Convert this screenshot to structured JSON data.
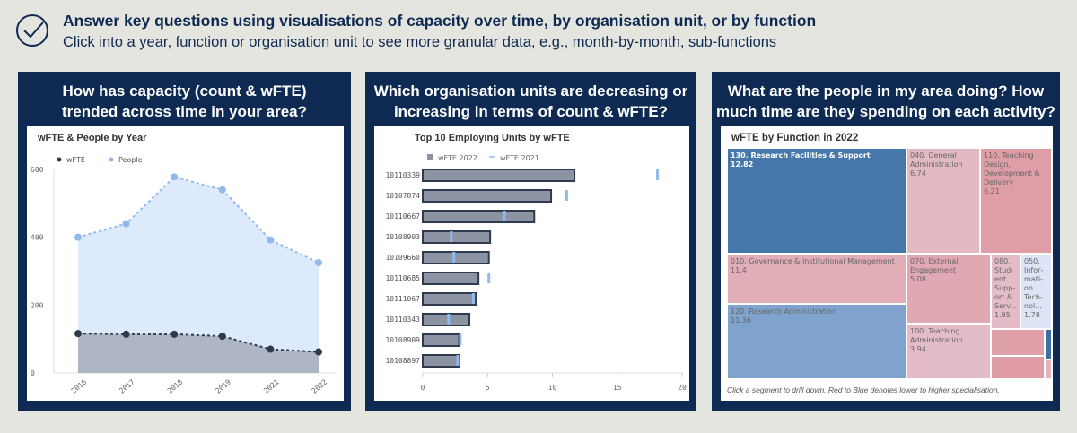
{
  "header": {
    "title": "Answer key questions using visualisations of capacity over time, by organisation unit, or by function",
    "subtitle": "Click into a year, function or organisation unit to see more granular data, e.g., month-by-month, sub-functions",
    "icon": "check-circle-icon"
  },
  "panels": [
    {
      "title_line1": "How has capacity (count & wFTE)",
      "title_line2": "trended across time in your area?"
    },
    {
      "title_line1": "Which organisation units are decreasing or",
      "title_line2": "increasing in terms of count & wFTE?"
    },
    {
      "title_line1": "What are the people in my area doing? How",
      "title_line2": "much time are they spending on each activity?"
    }
  ],
  "colors": {
    "navy": "#0e2a52",
    "people": "#8fbaf0",
    "wfte": "#2f3a4d",
    "bar": "#8c93a3"
  },
  "chart_data": [
    {
      "type": "area",
      "title": "wFTE & People by Year",
      "legend": "top-left",
      "categories": [
        "2016",
        "2017",
        "2018",
        "2019",
        "2021",
        "2022"
      ],
      "ylim": [
        0,
        600
      ],
      "yticks": [
        0,
        200,
        400,
        600
      ],
      "series": [
        {
          "name": "wFTE",
          "values": [
            116,
            114,
            114,
            108,
            70,
            62
          ]
        },
        {
          "name": "People",
          "values": [
            400,
            440,
            578,
            540,
            392,
            325
          ]
        }
      ]
    },
    {
      "type": "bar",
      "title": "Top 10 Employing Units by wFTE",
      "legend": "top-left",
      "categories": [
        "10110339",
        "10107874",
        "10110667",
        "10108903",
        "10109660",
        "10110685",
        "10111067",
        "10110343",
        "10108909",
        "10108897"
      ],
      "xlim": [
        0,
        20
      ],
      "xticks": [
        0,
        5,
        10,
        15,
        20
      ],
      "series": [
        {
          "name": "wFTE 2022",
          "values": [
            11.7,
            9.9,
            8.6,
            5.2,
            5.1,
            4.3,
            4.1,
            3.6,
            2.8,
            2.8
          ]
        },
        {
          "name": "wFTE 2021",
          "values": [
            18.1,
            11.1,
            6.3,
            2.2,
            2.4,
            5.1,
            3.9,
            2.0,
            2.9,
            2.7
          ]
        }
      ]
    },
    {
      "type": "treemap",
      "title": "wFTE by Function in 2022",
      "note": "Click a segment to drill down. Red to Blue denotes lower to higher specialisation.",
      "items": [
        {
          "label": "130. Research Facilities & Support",
          "value": "12.82"
        },
        {
          "label": "010. Governance & Institutional Management",
          "value": "11.4"
        },
        {
          "label": "120. Research Administration",
          "value": "11.36"
        },
        {
          "label": "040. General Administration",
          "value": "6.74"
        },
        {
          "label": "110. Teaching Design, Development & Delivery",
          "value": "6.21"
        },
        {
          "label": "070. External Engagement",
          "value": "5.08"
        },
        {
          "label": "100. Teaching Administration",
          "value": "3.94"
        },
        {
          "label": "080. Stud­ent Supp­ort & Serv...",
          "value": "1.95"
        },
        {
          "label": "050. Infor­mati­on Tech­nol...",
          "value": "1.78"
        }
      ]
    }
  ]
}
